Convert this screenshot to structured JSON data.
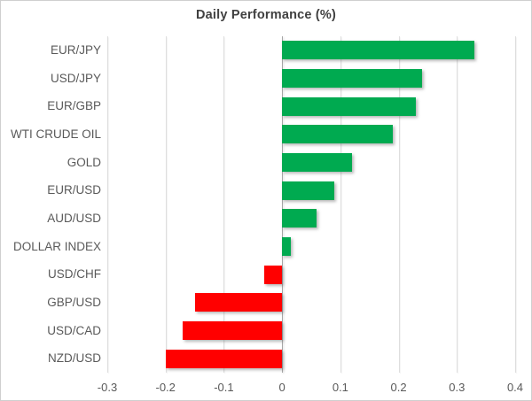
{
  "chart_data": {
    "type": "bar",
    "orientation": "horizontal",
    "title": "Daily Performance (%)",
    "categories": [
      "EUR/JPY",
      "USD/JPY",
      "EUR/GBP",
      "WTI CRUDE OIL",
      "GOLD",
      "EUR/USD",
      "AUD/USD",
      "DOLLAR INDEX",
      "USD/CHF",
      "GBP/USD",
      "USD/CAD",
      "NZD/USD"
    ],
    "values": [
      0.33,
      0.24,
      0.23,
      0.19,
      0.12,
      0.09,
      0.06,
      0.015,
      -0.03,
      -0.15,
      -0.17,
      -0.2
    ],
    "xlabel": "",
    "ylabel": "",
    "xlim": [
      -0.3,
      0.4
    ],
    "x_ticks": [
      -0.3,
      -0.2,
      -0.1,
      0,
      0.1,
      0.2,
      0.3,
      0.4
    ],
    "x_tick_labels": [
      "-0.3",
      "-0.2",
      "-0.1",
      "0",
      "0.1",
      "0.2",
      "0.3",
      "0.4"
    ],
    "grid": true,
    "legend": false,
    "colors": {
      "positive": "#00aa50",
      "negative": "#ff0000",
      "gridline": "#dedede",
      "zero_line": "#a6a6a6",
      "title_text": "#404040",
      "label_text": "#595959"
    }
  }
}
